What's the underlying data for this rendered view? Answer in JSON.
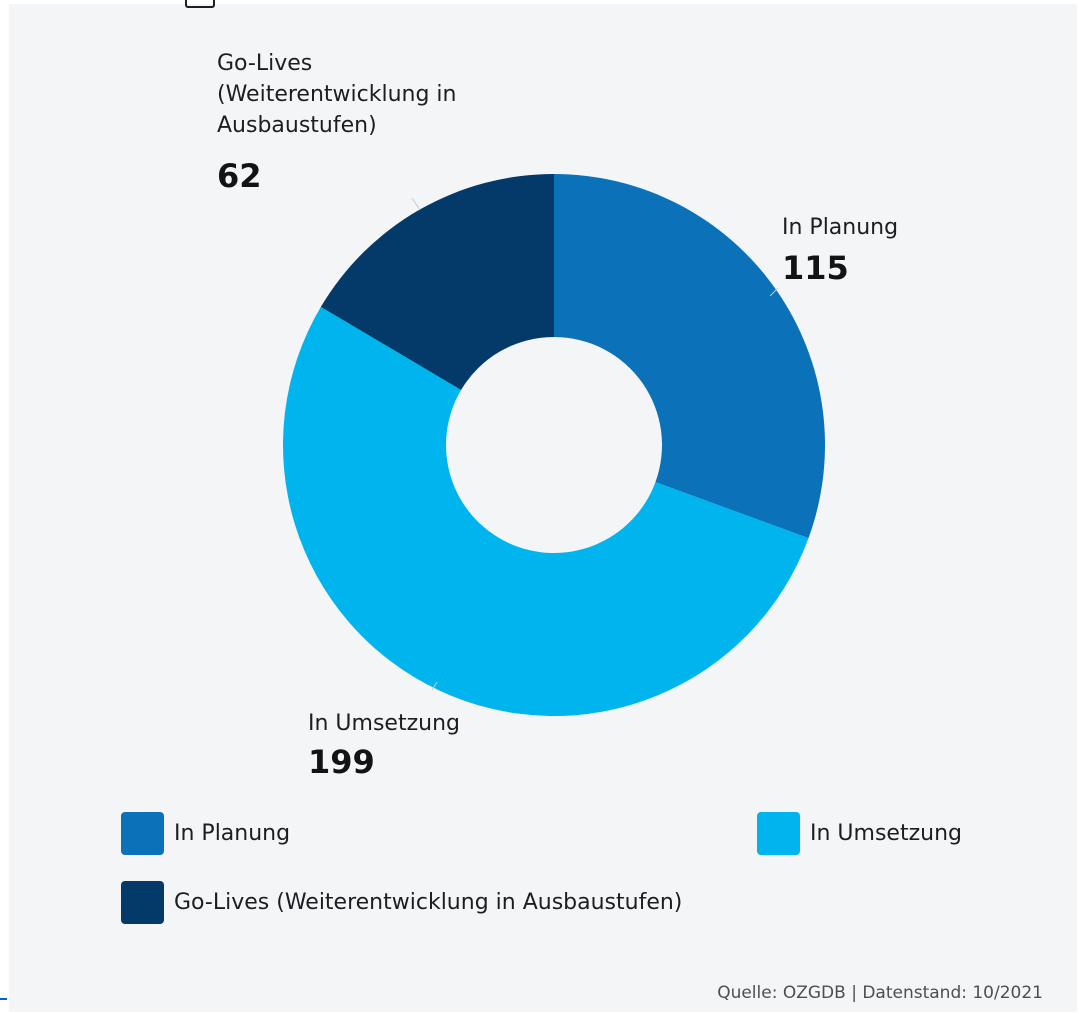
{
  "chart_data": {
    "type": "pie",
    "variant": "donut",
    "slices": [
      {
        "label": "In Planung",
        "value": 115,
        "color": "#0b71b9"
      },
      {
        "label": "In Umsetzung",
        "value": 199,
        "color": "#00b5ee"
      },
      {
        "label": "Go-Lives (Weiterentwicklung in Ausbaustufen)",
        "value": 62,
        "color": "#033a69"
      }
    ],
    "legend_position": "bottom",
    "source": "Quelle: OZGDB | Datenstand: 10/2021"
  },
  "labels": {
    "planung": {
      "lines": [
        "In Planung"
      ],
      "value": "115"
    },
    "umsetzung": {
      "lines": [
        "In Umsetzung"
      ],
      "value": "199"
    },
    "golives": {
      "lines": [
        "Go-Lives",
        "(Weiterentwicklung in",
        "Ausbaustufen)"
      ],
      "value": "62"
    }
  },
  "legend": [
    {
      "label": "In Planung",
      "color": "#0b71b9"
    },
    {
      "label": "In Umsetzung",
      "color": "#00b5ee"
    },
    {
      "label": "Go-Lives (Weiterentwicklung in Ausbaustufen)",
      "color": "#033a69"
    }
  ]
}
